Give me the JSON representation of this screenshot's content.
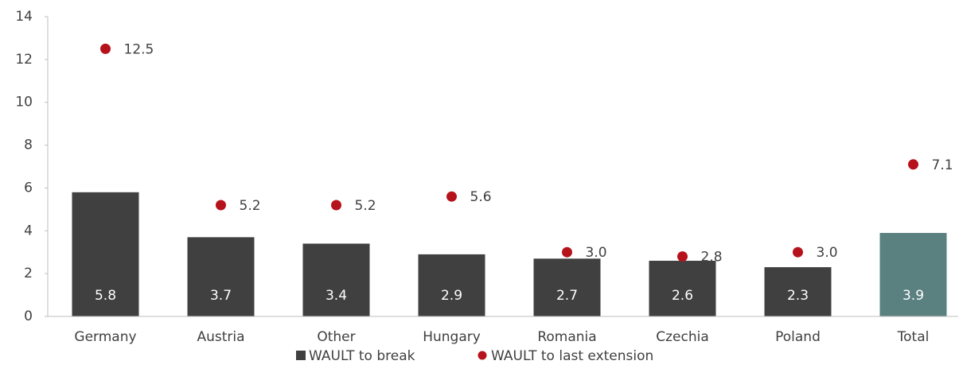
{
  "chart_data": {
    "type": "bar_dot",
    "categories": [
      "Germany",
      "Austria",
      "Other",
      "Hungary",
      "Romania",
      "Czechia",
      "Poland",
      "Total"
    ],
    "series": [
      {
        "name": "WAULT to break",
        "color": "#404040",
        "colors": [
          "#404040",
          "#404040",
          "#404040",
          "#404040",
          "#404040",
          "#404040",
          "#404040",
          "#5b8080"
        ],
        "values": [
          5.8,
          3.7,
          3.4,
          2.9,
          2.7,
          2.6,
          2.3,
          3.9
        ]
      },
      {
        "name": "WAULT to last extension",
        "color": "#b5121b",
        "values": [
          12.5,
          5.2,
          5.2,
          5.6,
          3.0,
          2.8,
          3.0,
          7.1
        ],
        "value_labels": [
          "12.5",
          "5.2",
          "5.2",
          "5.6",
          "3.0",
          "2.8",
          "3.0",
          "7.1"
        ]
      }
    ],
    "ylim": [
      0,
      14
    ],
    "yticks": [
      0,
      2,
      4,
      6,
      8,
      10,
      12,
      14
    ],
    "legend": "bottom"
  }
}
